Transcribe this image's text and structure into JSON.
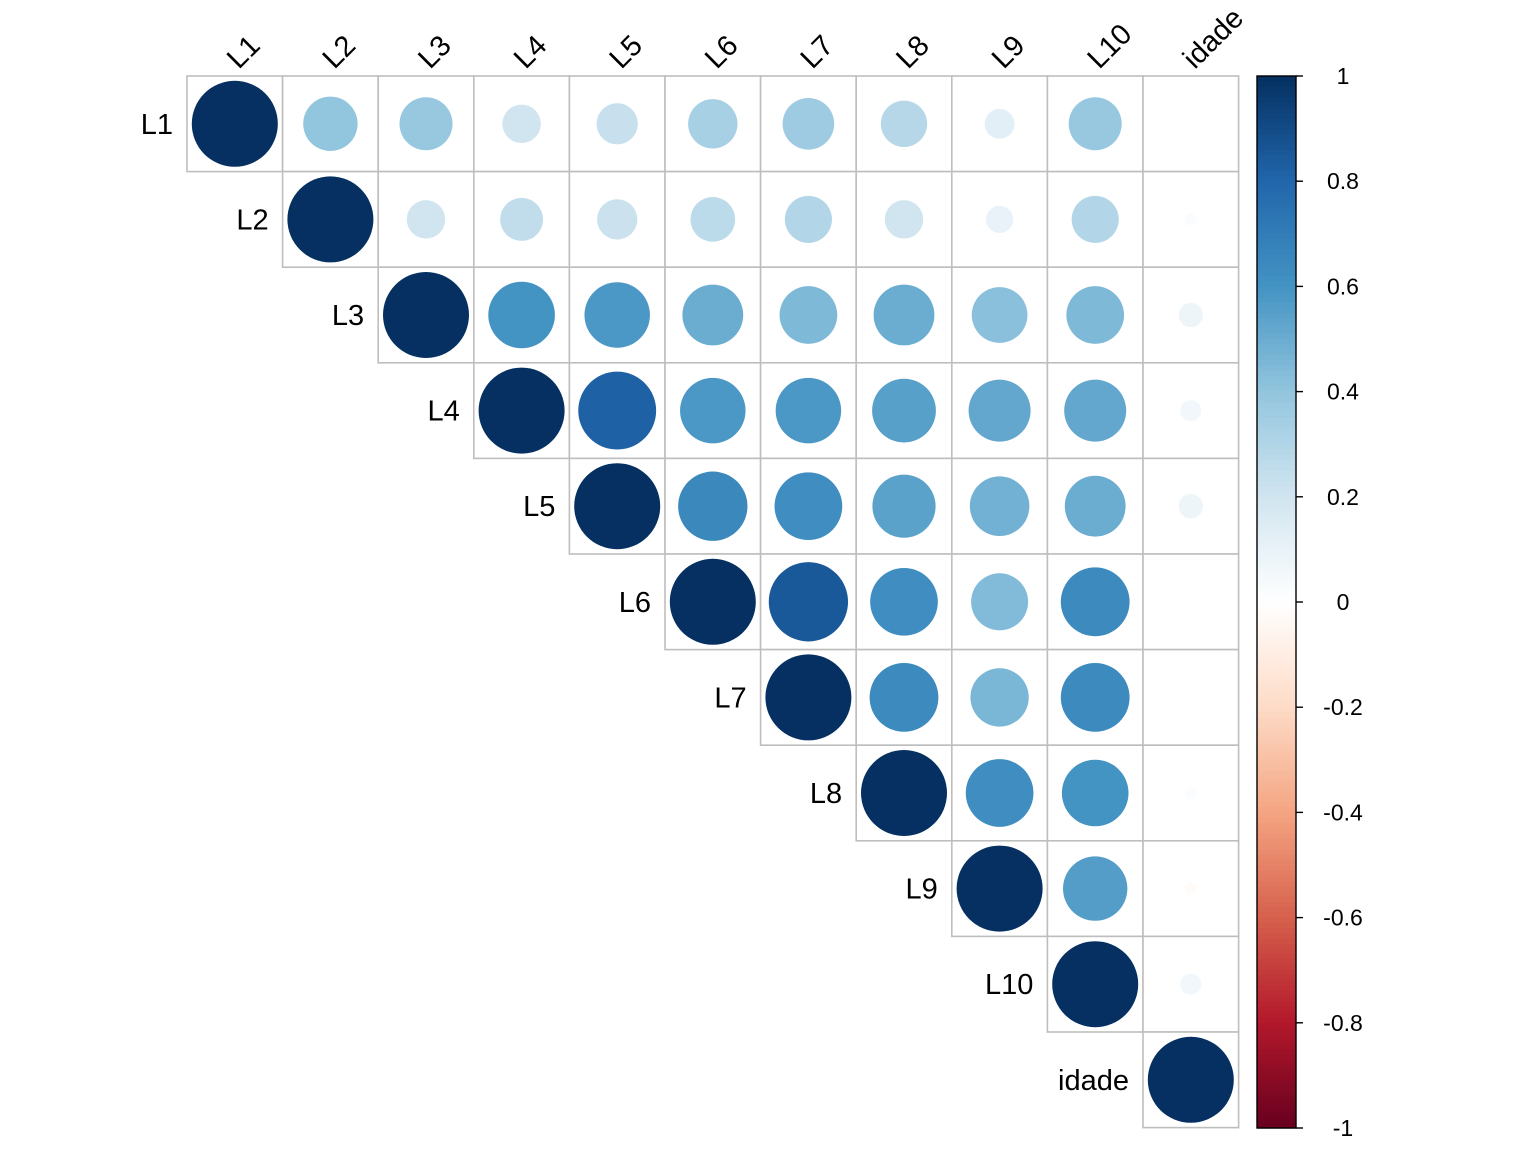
{
  "chart_data": {
    "type": "heatmap",
    "style": "corrplot-circle-upper",
    "variables": [
      "L1",
      "L2",
      "L3",
      "L4",
      "L5",
      "L6",
      "L7",
      "L8",
      "L9",
      "L10",
      "idade"
    ],
    "matrix": [
      [
        1.0,
        0.4,
        0.38,
        0.2,
        0.23,
        0.33,
        0.36,
        0.29,
        0.12,
        0.38,
        0.0
      ],
      [
        null,
        1.0,
        0.2,
        0.25,
        0.22,
        0.27,
        0.3,
        0.2,
        0.1,
        0.3,
        0.02
      ],
      [
        null,
        null,
        1.0,
        0.6,
        0.58,
        0.5,
        0.45,
        0.5,
        0.42,
        0.45,
        0.08
      ],
      [
        null,
        null,
        null,
        1.0,
        0.82,
        0.58,
        0.58,
        0.55,
        0.52,
        0.52,
        0.06
      ],
      [
        null,
        null,
        null,
        null,
        1.0,
        0.65,
        0.62,
        0.54,
        0.48,
        0.5,
        0.08
      ],
      [
        null,
        null,
        null,
        null,
        null,
        1.0,
        0.85,
        0.62,
        0.44,
        0.64,
        0.0
      ],
      [
        null,
        null,
        null,
        null,
        null,
        null,
        1.0,
        0.64,
        0.46,
        0.64,
        0.0
      ],
      [
        null,
        null,
        null,
        null,
        null,
        null,
        null,
        1.0,
        0.62,
        0.6,
        0.02
      ],
      [
        null,
        null,
        null,
        null,
        null,
        null,
        null,
        null,
        1.0,
        0.56,
        -0.02
      ],
      [
        null,
        null,
        null,
        null,
        null,
        null,
        null,
        null,
        null,
        1.0,
        0.06
      ],
      [
        null,
        null,
        null,
        null,
        null,
        null,
        null,
        null,
        null,
        null,
        1.0
      ]
    ],
    "colorbar": {
      "range": [
        -1,
        1
      ],
      "ticks": [
        "1",
        "0.8",
        "0.6",
        "0.4",
        "0.2",
        "0",
        "-0.2",
        "-0.4",
        "-0.6",
        "-0.8",
        "-1"
      ]
    },
    "colors": {
      "scale": [
        "#67001F",
        "#B2182B",
        "#D6604D",
        "#F4A582",
        "#FDDBC7",
        "#FFFFFF",
        "#D1E5F0",
        "#92C5DE",
        "#4393C3",
        "#2166AC",
        "#053061"
      ],
      "grid": "#BEBEBE"
    }
  }
}
